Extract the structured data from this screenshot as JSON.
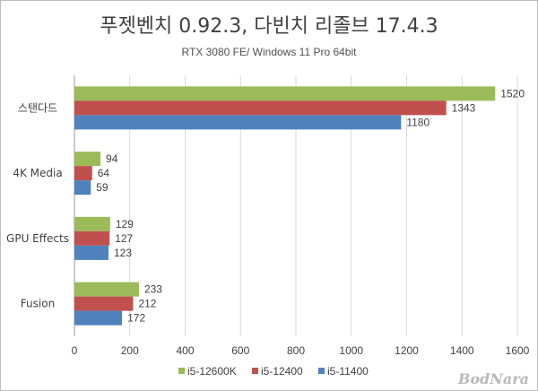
{
  "chart_data": {
    "type": "bar",
    "orientation": "horizontal",
    "title": "푸젯벤치 0.92.3, 다빈치 리졸브 17.4.3",
    "subtitle": "RTX 3080 FE/ Windows 11 Pro 64bit",
    "categories": [
      "스탠다드",
      "4K Media",
      "GPU Effects",
      "Fusion"
    ],
    "series": [
      {
        "name": "i5-12600K",
        "color": "#9bbb59",
        "values": [
          1520,
          94,
          129,
          233
        ]
      },
      {
        "name": "i5-12400",
        "color": "#c0504d",
        "values": [
          1343,
          64,
          127,
          212
        ]
      },
      {
        "name": "i5-11400",
        "color": "#4f81bd",
        "values": [
          1180,
          59,
          123,
          172
        ]
      }
    ],
    "xlim": [
      0,
      1600
    ],
    "xticks": [
      "0",
      "200",
      "400",
      "600",
      "800",
      "1000",
      "1200",
      "1400",
      "1600"
    ],
    "xlabel": "",
    "ylabel": "",
    "grid": true,
    "legend_position": "bottom"
  },
  "watermark": "BodNara"
}
